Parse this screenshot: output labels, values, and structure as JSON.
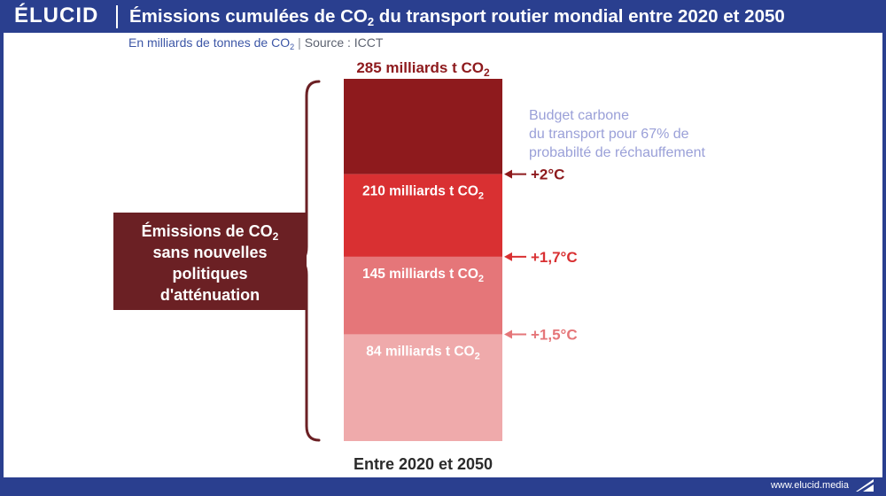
{
  "header": {
    "logo": "ÉLUCID",
    "title_prefix": "Émissions cumulées de CO",
    "title_sub": "2",
    "title_suffix": " du transport routier mondial entre 2020 et 2050"
  },
  "subtitle": {
    "unit_prefix": "En milliards de tonnes de CO",
    "unit_sub": "2",
    "separator": "|",
    "source": "Source : ICCT"
  },
  "footer": {
    "url": "www.elucid.media"
  },
  "colors": {
    "brand": "#2a3f8f",
    "seg_top": "#8e1a1d",
    "seg_2": "#d93032",
    "seg_3": "#e57679",
    "seg_4": "#efaaab",
    "left_box": "#6b2024",
    "budget_text": "#9aa0d8"
  },
  "chart_data": {
    "type": "bar",
    "stacked": true,
    "categories": [
      "Entre 2020 et 2050"
    ],
    "xlabel": "Entre 2020 et 2050",
    "ylim": [
      0,
      285
    ],
    "levels": [
      {
        "value": 285,
        "label_prefix": "285 milliards t CO",
        "label_sub": "2",
        "marker": ""
      },
      {
        "value": 210,
        "label_prefix": "210 milliards t CO",
        "label_sub": "2",
        "marker": "+2°C"
      },
      {
        "value": 145,
        "label_prefix": "145 milliards t CO",
        "label_sub": "2",
        "marker": "+1,7°C"
      },
      {
        "value": 84,
        "label_prefix": "84 milliards t CO",
        "label_sub": "2",
        "marker": "+1,5°C"
      }
    ],
    "budget_annotation": [
      "Budget carbone",
      "du transport pour 67% de",
      "probabilté de réchauffement"
    ],
    "bracket_label": {
      "line1_prefix": "Émissions de CO",
      "line1_sub": "2",
      "lines": [
        "sans nouvelles",
        "politiques",
        "d'atténuation"
      ]
    }
  }
}
